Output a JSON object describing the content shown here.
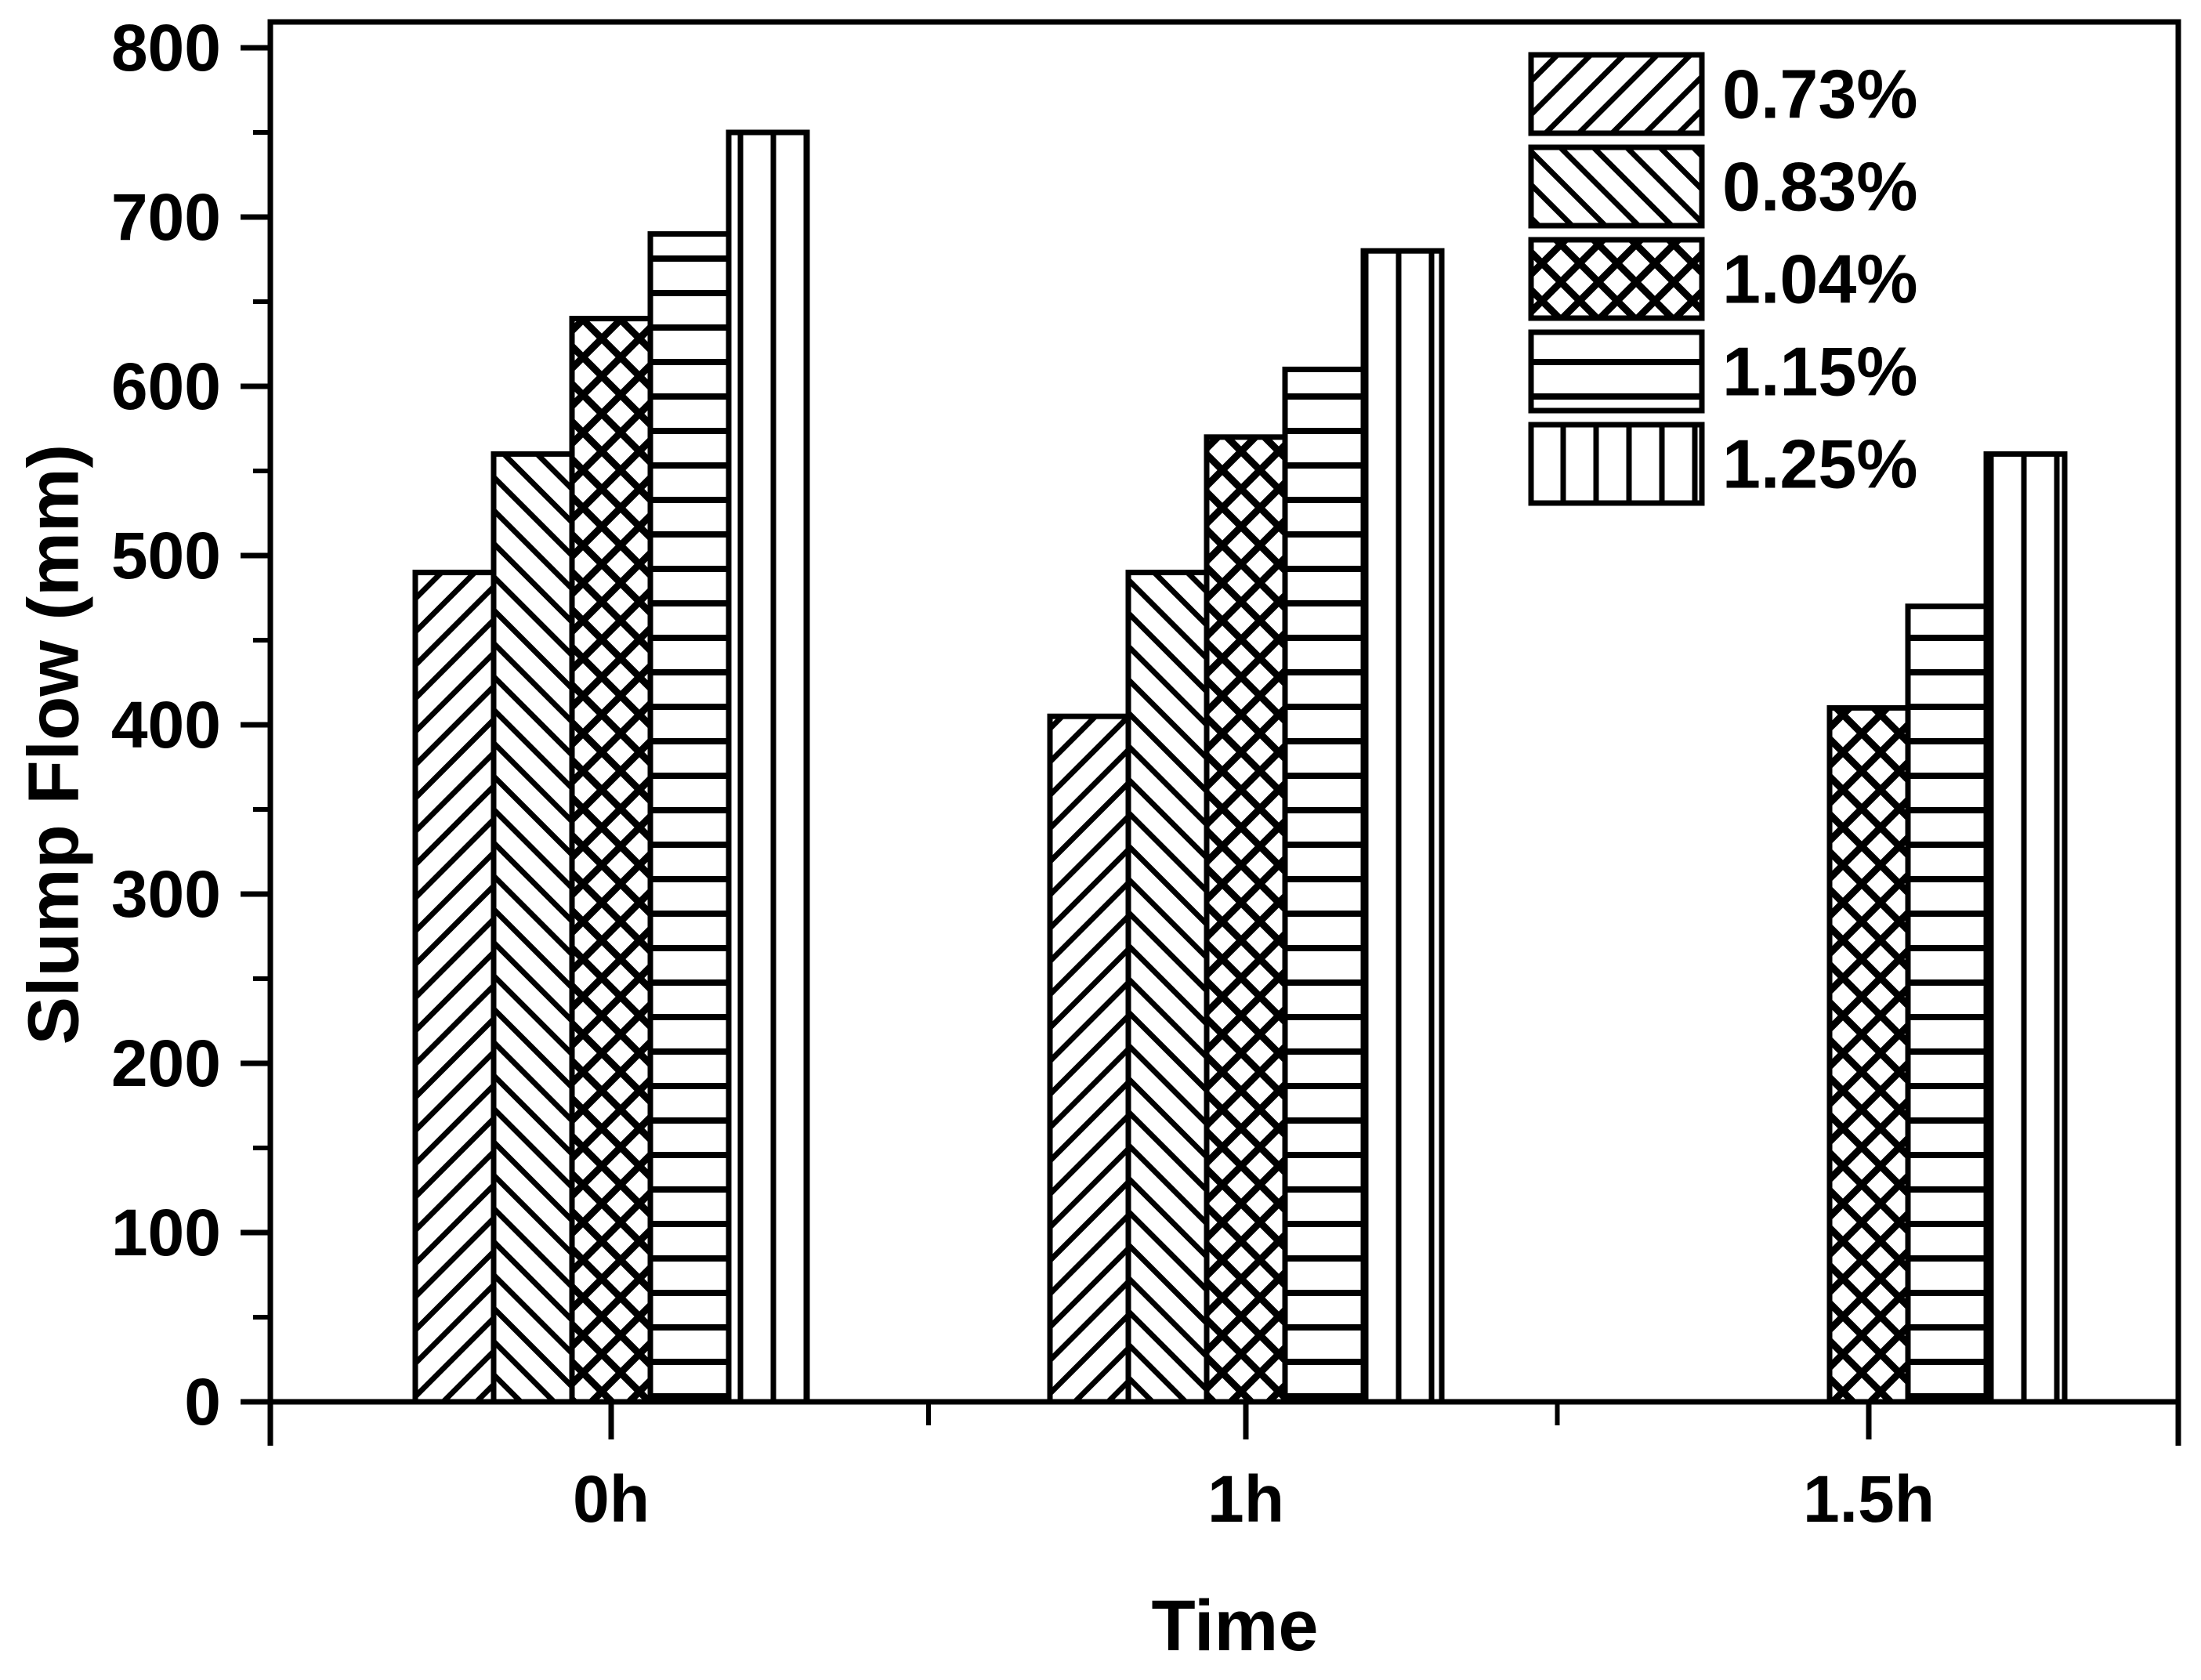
{
  "page": {
    "background": "#ffffff",
    "foreground": "#000000"
  },
  "chart_data": {
    "type": "bar",
    "title": "",
    "xlabel": "Time",
    "ylabel": "Slump Flow (mm)",
    "categories": [
      "0h",
      "1h",
      "1.5h"
    ],
    "series": [
      {
        "name": "0.73%",
        "pattern": "diagonal-forward",
        "values": [
          490,
          405,
          null
        ]
      },
      {
        "name": "0.83%",
        "pattern": "diagonal-backward",
        "values": [
          560,
          490,
          null
        ]
      },
      {
        "name": "1.04%",
        "pattern": "crosshatch",
        "values": [
          640,
          570,
          410
        ]
      },
      {
        "name": "1.15%",
        "pattern": "horizontal-lines",
        "values": [
          690,
          610,
          470
        ]
      },
      {
        "name": "1.25%",
        "pattern": "vertical-lines",
        "values": [
          750,
          680,
          560
        ]
      }
    ],
    "ylim": [
      0,
      800
    ],
    "ytick_major": 100,
    "ytick_minor": 50,
    "grid": false,
    "legend_position": "top-right",
    "bar_fill": "#ffffff",
    "bar_stroke": "#000000"
  }
}
